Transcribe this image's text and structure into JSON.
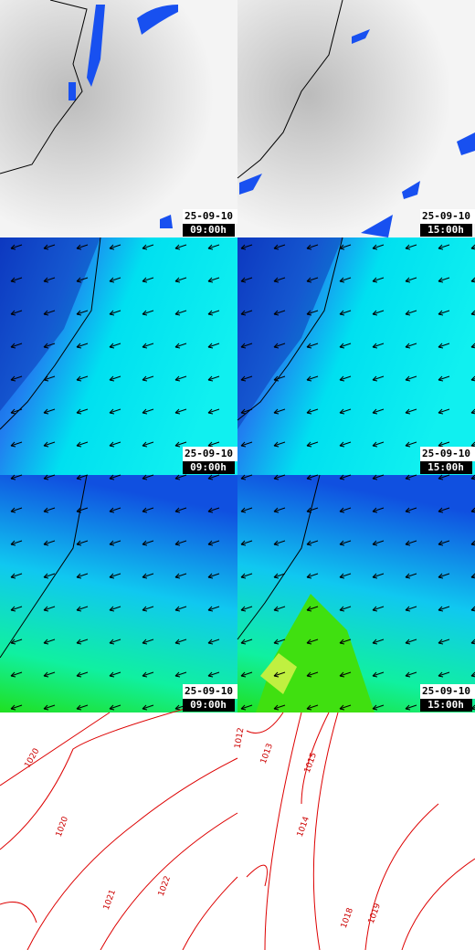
{
  "panels": [
    {
      "date": "25-09-10",
      "time": "09:00h"
    },
    {
      "date": "25-09-10",
      "time": "15:00h"
    },
    {
      "date": "25-09-10",
      "time": "09:00h"
    },
    {
      "date": "25-09-10",
      "time": "15:00h"
    },
    {
      "date": "25-09-10",
      "time": "09:00h"
    },
    {
      "date": "25-09-10",
      "time": "15:00h"
    }
  ],
  "isobar_labels": [
    "1020",
    "1020",
    "1021",
    "1022",
    "1012",
    "1013",
    "1015",
    "1014",
    "1018",
    "1019"
  ]
}
